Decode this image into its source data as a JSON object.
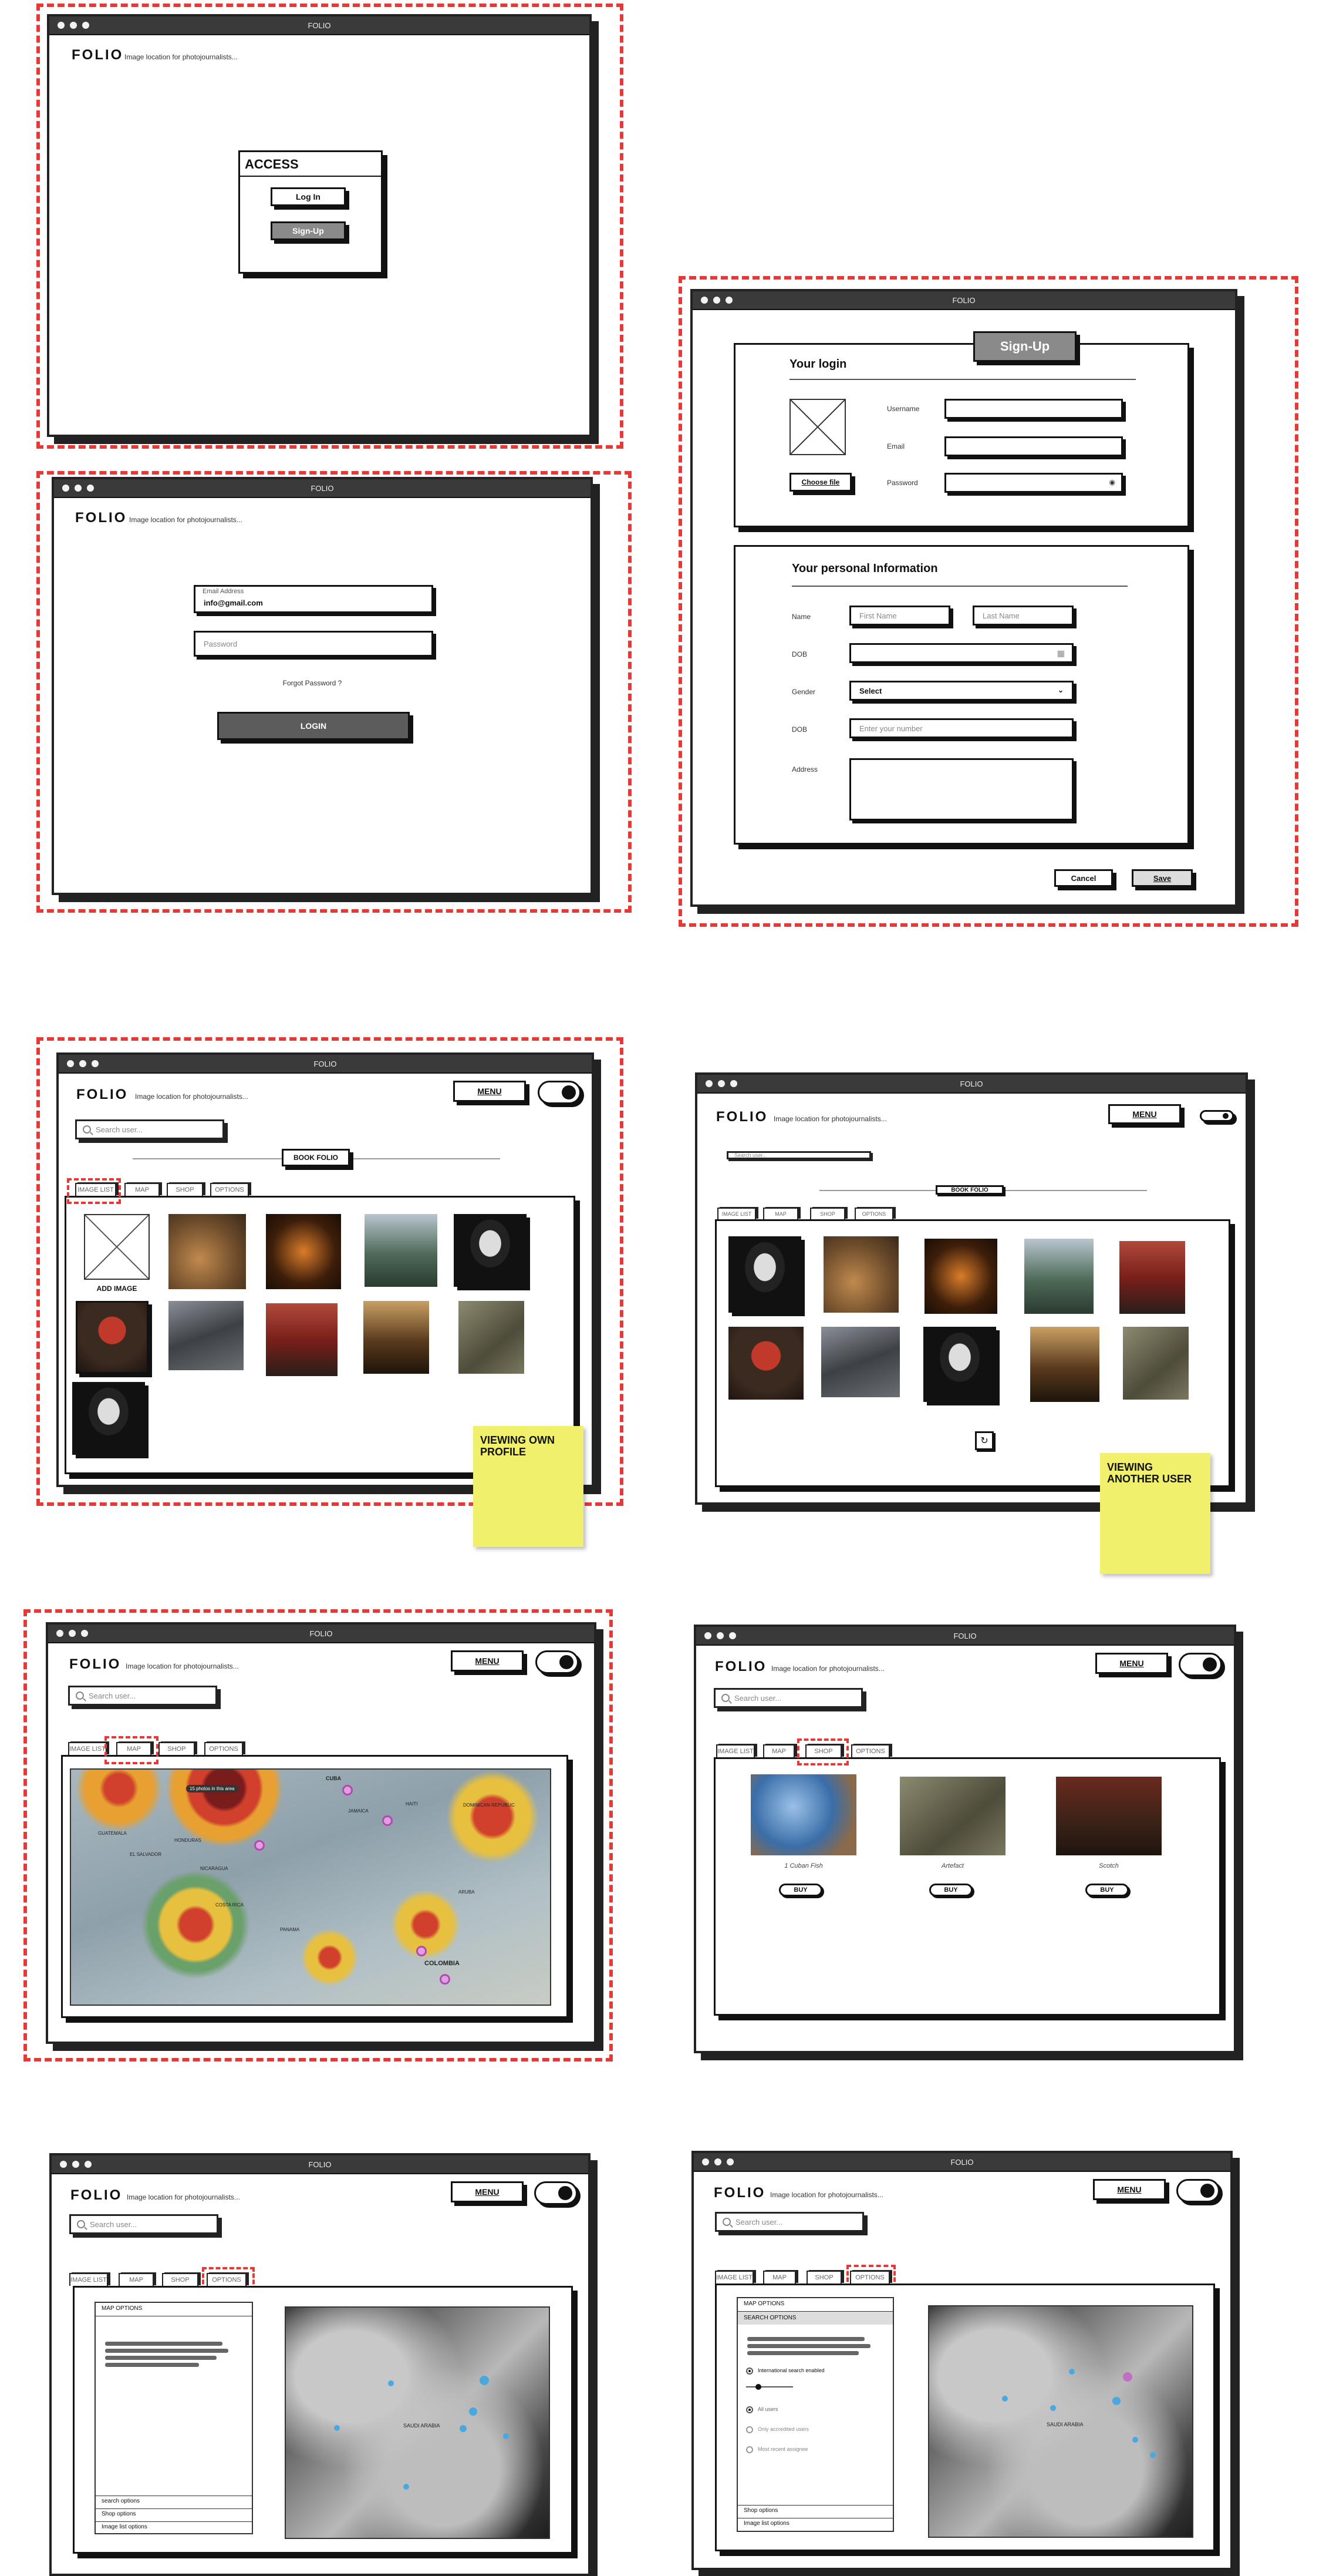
{
  "window_title": "FOLIO",
  "logo": "FOLIO",
  "logo_sub": "Image location for photojournalists...",
  "access": {
    "title": "ACCESS",
    "login": "Log In",
    "signup": "Sign-Up"
  },
  "login": {
    "email_label": "Email Address",
    "email_value": "info@gmail.com",
    "password_placeholder": "Password",
    "forgot": "Forgot Password ?",
    "button": "LOGIN"
  },
  "signup": {
    "badge": "Sign-Up",
    "login_title": "Your login",
    "choose_file": "Choose file",
    "username": "Username",
    "email": "Email",
    "password": "Password",
    "personal_title": "Your personal Information",
    "name": "Name",
    "first_name": "First Name",
    "last_name": "Last Name",
    "dob": "DOB",
    "gender": "Gender",
    "gender_select": "Select",
    "dob2": "DOB",
    "number_placeholder": "Enter your number",
    "address": "Address",
    "cancel": "Cancel",
    "save": "Save"
  },
  "common": {
    "menu": "MENU",
    "search": "Search user...",
    "book_folio": "BOOK FOLIO"
  },
  "tabs": [
    "IMAGE LIST",
    "MAP",
    "SHOP",
    "OPTIONS"
  ],
  "gallery": {
    "add_image": "ADD IMAGE",
    "own_note": "VIEWING OWN PROFILE",
    "other_note": "VIEWING ANOTHER USER"
  },
  "map_labels": [
    "CUBA",
    "JAMAICA",
    "HAITI",
    "DOMINICAN REPUBLIC",
    "GUATEMALA",
    "HONDURAS",
    "EL SALVADOR",
    "NICARAGUA",
    "COSTA RICA",
    "PANAMA",
    "ARUBA",
    "COLOMBIA"
  ],
  "map_tooltip": "15 photos in this area",
  "shop": {
    "items": [
      {
        "caption": "1 Cuban Fish",
        "buy": "BUY"
      },
      {
        "caption": "Artefact",
        "buy": "BUY"
      },
      {
        "caption": "Scotch",
        "buy": "BUY"
      }
    ]
  },
  "options": {
    "map_options": "MAP OPTIONS",
    "search_options": "SEARCH OPTIONS",
    "search_options_lower": "search options",
    "shop_options": "Shop options",
    "image_list_options": "Image list options",
    "intl_search": "International search enabled",
    "all_users": "All users",
    "accredited": "Only accredited users",
    "most_recent": "Most recent assignee",
    "saudi": "SAUDI ARABIA"
  },
  "colors": {
    "dash": "#e53935",
    "sticky": "#f0f06c",
    "titlebar": "#3a3a3a"
  }
}
